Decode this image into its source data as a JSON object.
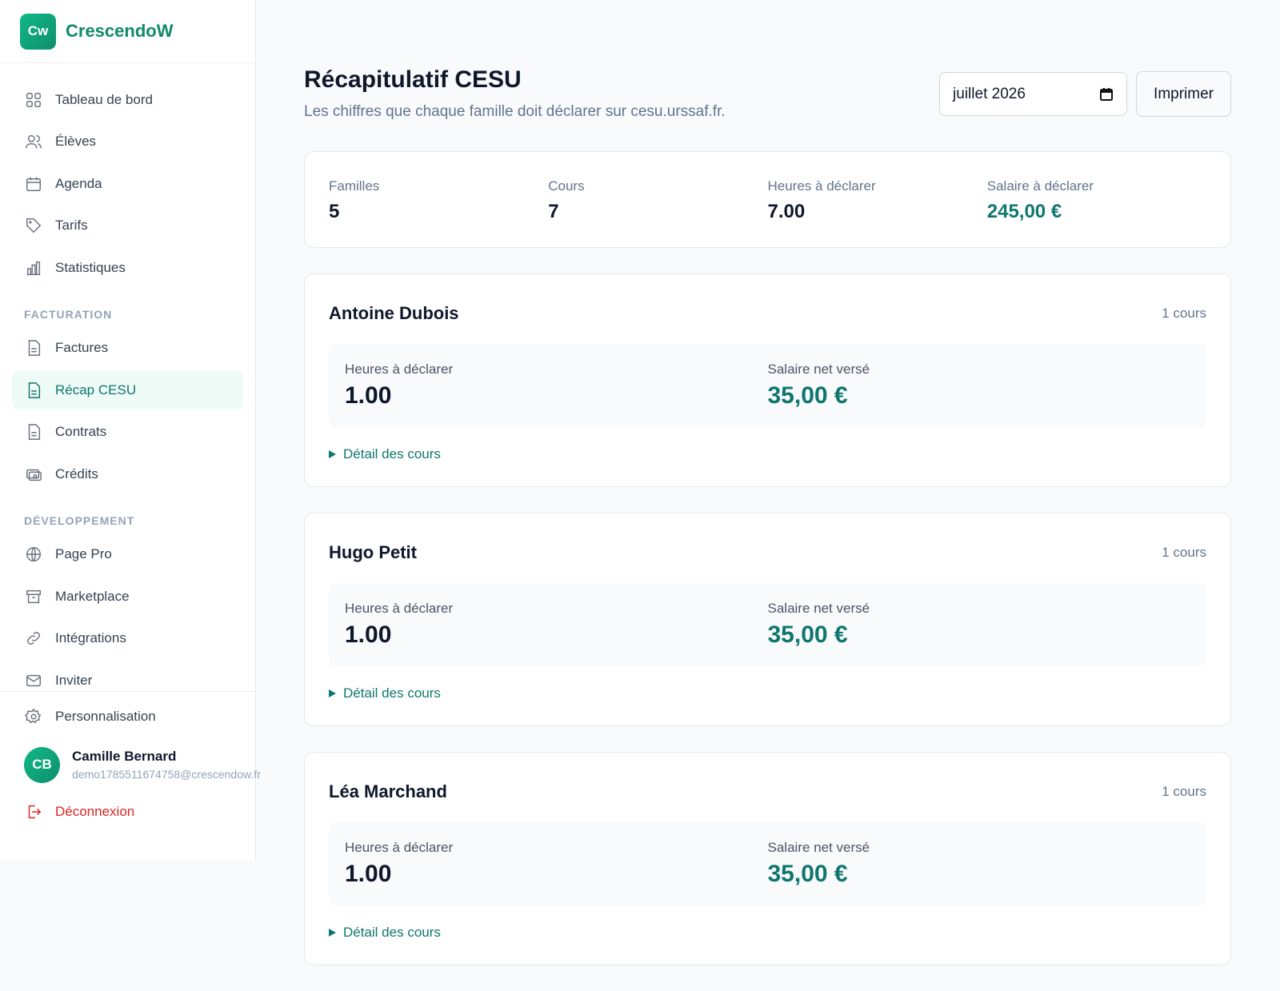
{
  "sidebar": {
    "logo": "Cw",
    "brand": "CrescendoW",
    "nav": [
      "Tableau de bord",
      "Élèves",
      "Agenda",
      "Tarifs",
      "Statistiques"
    ],
    "sections": [
      {
        "title": "FACTURATION",
        "items": [
          "Factures",
          "Récap CESU",
          "Contrats",
          "Crédits"
        ]
      },
      {
        "title": "DÉVELOPPEMENT",
        "items": [
          "Page Pro",
          "Marketplace",
          "Intégrations",
          "Inviter"
        ]
      }
    ],
    "settings": "Personnalisation",
    "user": {
      "initials": "CB",
      "name": "Camille Bernard",
      "email": "demo1785511674758@crescendow.fr"
    },
    "logout": "Déconnexion"
  },
  "main": {
    "title": "Récapitulatif CESU",
    "subtitle": "Les chiffres que chaque famille doit déclarer sur cesu.urssaf.fr.",
    "month": "juillet 2026",
    "print": "Imprimer",
    "summary": [
      {
        "label": "Familles",
        "value": "5"
      },
      {
        "label": "Cours",
        "value": "7"
      },
      {
        "label": "Heures à déclarer",
        "value": "7.00"
      },
      {
        "label": "Salaire à déclarer",
        "value": "245,00 €"
      }
    ],
    "families": [
      {
        "name": "Antoine Dubois",
        "count": "1 cours",
        "hours_label": "Heures à déclarer",
        "hours": "1.00",
        "salary_label": "Salaire net versé",
        "salary": "35,00 €",
        "detail": "Détail des cours"
      },
      {
        "name": "Hugo Petit",
        "count": "1 cours",
        "hours_label": "Heures à déclarer",
        "hours": "1.00",
        "salary_label": "Salaire net versé",
        "salary": "35,00 €",
        "detail": "Détail des cours"
      },
      {
        "name": "Léa Marchand",
        "count": "1 cours",
        "hours_label": "Heures à déclarer",
        "hours": "1.00",
        "salary_label": "Salaire net versé",
        "salary": "35,00 €",
        "detail": "Détail des cours"
      }
    ]
  }
}
